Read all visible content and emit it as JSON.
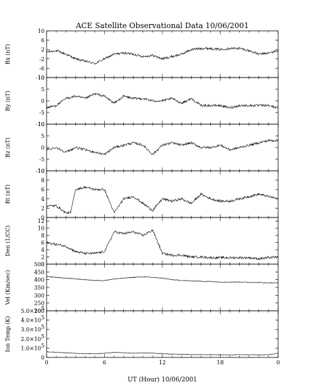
{
  "chart_data": {
    "type": "line",
    "title": "ACE Satellite Observational Data   10/06/2001",
    "xlabel": "UT (Hour)   10/06/2001",
    "x_ticks": [
      "0",
      "6",
      "12",
      "18",
      "0"
    ],
    "x_tick_values": [
      0,
      6,
      12,
      18,
      24
    ],
    "xlim": [
      0,
      24
    ],
    "grid": false,
    "panels": [
      {
        "id": "bx",
        "ylabel": "Bx (nT)",
        "ylim": [
          -10,
          10
        ],
        "yticks": [
          10,
          6,
          2,
          -2,
          -6,
          -10
        ],
        "ytick_labels": [
          "10",
          "6",
          "2",
          "-2",
          "-6",
          "-10"
        ],
        "series": [
          {
            "x": [
              0,
              1,
              2,
              3,
              4,
              5,
              6,
              7,
              8,
              9,
              10,
              11,
              12,
              13,
              14,
              15,
              16,
              17,
              18,
              19,
              20,
              21,
              22,
              23,
              24
            ],
            "y": [
              1,
              1.5,
              0,
              -2,
              -3,
              -4,
              -2,
              0,
              0.5,
              0,
              -1,
              -0.5,
              -2,
              -1,
              0,
              2,
              2.5,
              2.5,
              2,
              2.5,
              2.5,
              1.5,
              0,
              0.5,
              1.5
            ]
          }
        ]
      },
      {
        "id": "by",
        "ylabel": "By (nT)",
        "ylim": [
          -10,
          10
        ],
        "yticks": [
          10,
          5,
          0,
          -5,
          -10
        ],
        "ytick_labels": [
          "10",
          "5",
          "0",
          "-5",
          "-10"
        ],
        "series": [
          {
            "x": [
              0,
              1,
              2,
              3,
              4,
              5,
              6,
              7,
              8,
              9,
              10,
              11,
              12,
              13,
              14,
              15,
              16,
              17,
              18,
              19,
              20,
              21,
              22,
              23,
              24
            ],
            "y": [
              -3,
              -2,
              1,
              2,
              1,
              3,
              2,
              -1,
              2,
              1,
              1,
              0,
              0,
              1,
              -1,
              1,
              -2,
              -2,
              -2,
              -3,
              -2,
              -2,
              -2,
              -2,
              -3
            ]
          }
        ]
      },
      {
        "id": "bz",
        "ylabel": "Bz (nT)",
        "ylim": [
          -10,
          10
        ],
        "yticks": [
          10,
          5,
          0,
          -5,
          -10
        ],
        "ytick_labels": [
          "10",
          "5",
          "0",
          "-5",
          "-10"
        ],
        "series": [
          {
            "x": [
              0,
              1,
              2,
              3,
              4,
              5,
              6,
              7,
              8,
              9,
              10,
              11,
              12,
              13,
              14,
              15,
              16,
              17,
              18,
              19,
              20,
              21,
              22,
              23,
              24
            ],
            "y": [
              -1,
              0,
              -2,
              0,
              -1,
              -2,
              -3,
              0,
              1,
              2,
              1,
              -3,
              1,
              2,
              1,
              2,
              0,
              0,
              1,
              -1,
              0,
              1,
              2,
              3,
              3
            ]
          }
        ]
      },
      {
        "id": "bt",
        "ylabel": "Bt (nT)",
        "ylim": [
          0,
          10
        ],
        "yticks": [
          10,
          8,
          6,
          4,
          2,
          0
        ],
        "ytick_labels": [
          "10",
          "8",
          "6",
          "4",
          "2",
          "0"
        ],
        "series": [
          {
            "x": [
              0,
              1,
              2,
              2.5,
              3,
              4,
              5,
              6,
              7,
              8,
              9,
              10,
              11,
              12,
              13,
              14,
              15,
              16,
              17,
              18,
              19,
              20,
              21,
              22,
              23,
              24
            ],
            "y": [
              2.5,
              2.5,
              1,
              1,
              6,
              6.5,
              6,
              6,
              1,
              4,
              4.5,
              3,
              1.5,
              4,
              3.5,
              4,
              3,
              5,
              4,
              3.5,
              3.5,
              4,
              4.5,
              5,
              4.5,
              4
            ]
          }
        ]
      },
      {
        "id": "den",
        "ylabel": "Den (1/CC)",
        "ylim": [
          0,
          13
        ],
        "yticks": [
          12,
          10,
          8,
          6,
          4,
          2,
          0
        ],
        "ytick_labels": [
          "12",
          "10",
          "8",
          "6",
          "4",
          "2",
          "0"
        ],
        "series": [
          {
            "x": [
              0,
              1,
              2,
              3,
              4,
              5,
              6,
              7,
              8,
              9,
              10,
              11,
              12,
              13,
              14,
              15,
              16,
              17,
              18,
              19,
              20,
              21,
              22,
              23,
              24
            ],
            "y": [
              6,
              5.5,
              5,
              3.5,
              3,
              3,
              3.5,
              9,
              8.5,
              9,
              8,
              9.5,
              3,
              2.5,
              2.5,
              2,
              2,
              1.8,
              1.8,
              1.8,
              1.8,
              1.8,
              1.5,
              1.8,
              2
            ]
          }
        ]
      },
      {
        "id": "vel",
        "ylabel": "Vel (Km/sec)",
        "ylim": [
          200,
          500
        ],
        "yticks": [
          500,
          450,
          400,
          350,
          300,
          250,
          200
        ],
        "ytick_labels": [
          "500",
          "450",
          "400",
          "350",
          "300",
          "250",
          "200"
        ],
        "series": [
          {
            "x": [
              0,
              1,
              2,
              3,
              4,
              5,
              6,
              7,
              8,
              9,
              10,
              11,
              12,
              13,
              14,
              15,
              16,
              17,
              18,
              19,
              20,
              21,
              22,
              23,
              24
            ],
            "y": [
              420,
              415,
              410,
              405,
              400,
              395,
              395,
              405,
              410,
              415,
              418,
              415,
              410,
              400,
              395,
              392,
              390,
              388,
              385,
              385,
              385,
              383,
              382,
              380,
              380
            ]
          }
        ]
      },
      {
        "id": "temp",
        "ylabel": "Ion Temp (K)",
        "ylim": [
          0,
          500000
        ],
        "yticks": [
          500000,
          400000,
          300000,
          200000,
          100000,
          0
        ],
        "ytick_labels": [
          "5.0×10",
          "4.0×10",
          "3.0×10",
          "2.0×10",
          "1.0×10",
          "0"
        ],
        "ytick_exponents": [
          "5",
          "5",
          "5",
          "5",
          "5",
          ""
        ],
        "series": [
          {
            "x": [
              0,
              1,
              2,
              3,
              4,
              5,
              6,
              7,
              8,
              9,
              10,
              11,
              12,
              13,
              14,
              15,
              16,
              17,
              18,
              19,
              20,
              21,
              22,
              23,
              24
            ],
            "y": [
              60000,
              55000,
              50000,
              45000,
              40000,
              40000,
              45000,
              55000,
              50000,
              45000,
              50000,
              45000,
              40000,
              35000,
              35000,
              30000,
              30000,
              30000,
              28000,
              28000,
              30000,
              30000,
              28000,
              30000,
              45000
            ]
          }
        ]
      }
    ]
  }
}
